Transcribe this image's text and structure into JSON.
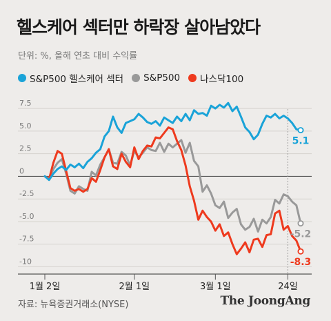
{
  "title": "헬스케어 섹터만 하락장 살아남았다",
  "unit_label": "단위: %, 올해 연초 대비 수익률",
  "source": "자료: 뉴욕증권거래소(NYSE)",
  "brand": "The JoongAng",
  "colors": {
    "healthcare": "#1aa3d8",
    "sp500": "#999999",
    "nasdaq": "#ee3a1e"
  },
  "chart_data": {
    "type": "line",
    "title": "헬스케어 섹터만 하락장 살아남았다",
    "xlabel": "",
    "ylabel": "단위: %, 올해 연초 대비 수익률",
    "ylim": [
      -10.8,
      8.5
    ],
    "yticks": [
      7.5,
      5.0,
      2.5,
      0,
      -2.5,
      -5.0,
      -7.5,
      -10
    ],
    "ytick_labels": [
      "7.5",
      "5.0",
      "2.5",
      "0",
      "-2.5",
      "-5.0",
      "-7.5",
      "-10"
    ],
    "x_ticks": [
      {
        "label": "1월 2일",
        "index": 0
      },
      {
        "label": "2월 1일",
        "index": 21
      },
      {
        "label": "3월 1일",
        "index": 40
      },
      {
        "label": "24일",
        "index": 57
      }
    ],
    "grid": true,
    "legend": "top",
    "series": [
      {
        "name": "S&P500 헬스케어 섹터",
        "color_key": "healthcare",
        "end_label": "5.1",
        "values": [
          0,
          -0.4,
          0.3,
          0.8,
          1.1,
          0.7,
          1.3,
          1.0,
          1.4,
          0.9,
          1.6,
          2.0,
          2.6,
          3.0,
          4.4,
          5.0,
          6.6,
          5.4,
          4.8,
          5.9,
          6.1,
          6.3,
          6.9,
          6.5,
          6.0,
          5.8,
          6.1,
          5.6,
          6.5,
          6.2,
          5.9,
          6.6,
          6.1,
          6.9,
          6.2,
          7.3,
          6.9,
          7.0,
          6.7,
          7.8,
          7.5,
          7.9,
          7.6,
          8.1,
          7.2,
          7.7,
          6.6,
          5.4,
          4.9,
          4.1,
          4.6,
          5.8,
          6.7,
          6.5,
          6.9,
          6.4,
          6.7,
          6.4,
          5.9,
          5.2,
          5.1
        ]
      },
      {
        "name": "S&P500",
        "color_key": "sp500",
        "end_label": "-5.2",
        "values": [
          0,
          -0.3,
          0.8,
          1.5,
          1.9,
          0.3,
          -1.6,
          -1.9,
          -1.1,
          -1.4,
          -1.6,
          0.5,
          0.1,
          1.3,
          2.1,
          3.0,
          1.5,
          1.4,
          2.7,
          2.3,
          1.2,
          2.8,
          2.1,
          2.6,
          3.2,
          2.9,
          2.8,
          3.7,
          2.7,
          3.6,
          3.2,
          3.6,
          4.0,
          2.6,
          3.7,
          1.7,
          1.1,
          -1.7,
          -1.0,
          -1.9,
          -3.2,
          -3.5,
          -2.8,
          -4.6,
          -4.0,
          -3.6,
          -5.3,
          -5.9,
          -5.6,
          -4.7,
          -6.1,
          -4.8,
          -5.2,
          -4.5,
          -2.6,
          -3.0,
          -2.0,
          -2.2,
          -2.8,
          -3.2,
          -5.2
        ]
      },
      {
        "name": "나스닥100",
        "color_key": "nasdaq",
        "end_label": "-8.3",
        "values": [
          0,
          -0.3,
          1.5,
          2.8,
          2.5,
          0.6,
          -1.3,
          -1.6,
          -1.4,
          -1.7,
          -1.4,
          -0.2,
          -0.6,
          0.7,
          2.1,
          3.0,
          1.1,
          0.8,
          2.5,
          1.6,
          1.0,
          3.2,
          1.9,
          2.8,
          3.4,
          3.3,
          4.3,
          4.2,
          4.8,
          5.4,
          5.2,
          3.9,
          2.9,
          1.2,
          -1.1,
          -2.7,
          -4.8,
          -3.8,
          -4.5,
          -5.0,
          -6.0,
          -5.3,
          -6.6,
          -6.2,
          -7.5,
          -8.6,
          -8.0,
          -7.3,
          -8.4,
          -7.0,
          -6.9,
          -7.8,
          -6.5,
          -6.4,
          -4.1,
          -3.8,
          -5.9,
          -5.5,
          -6.6,
          -7.1,
          -8.3
        ]
      }
    ]
  }
}
